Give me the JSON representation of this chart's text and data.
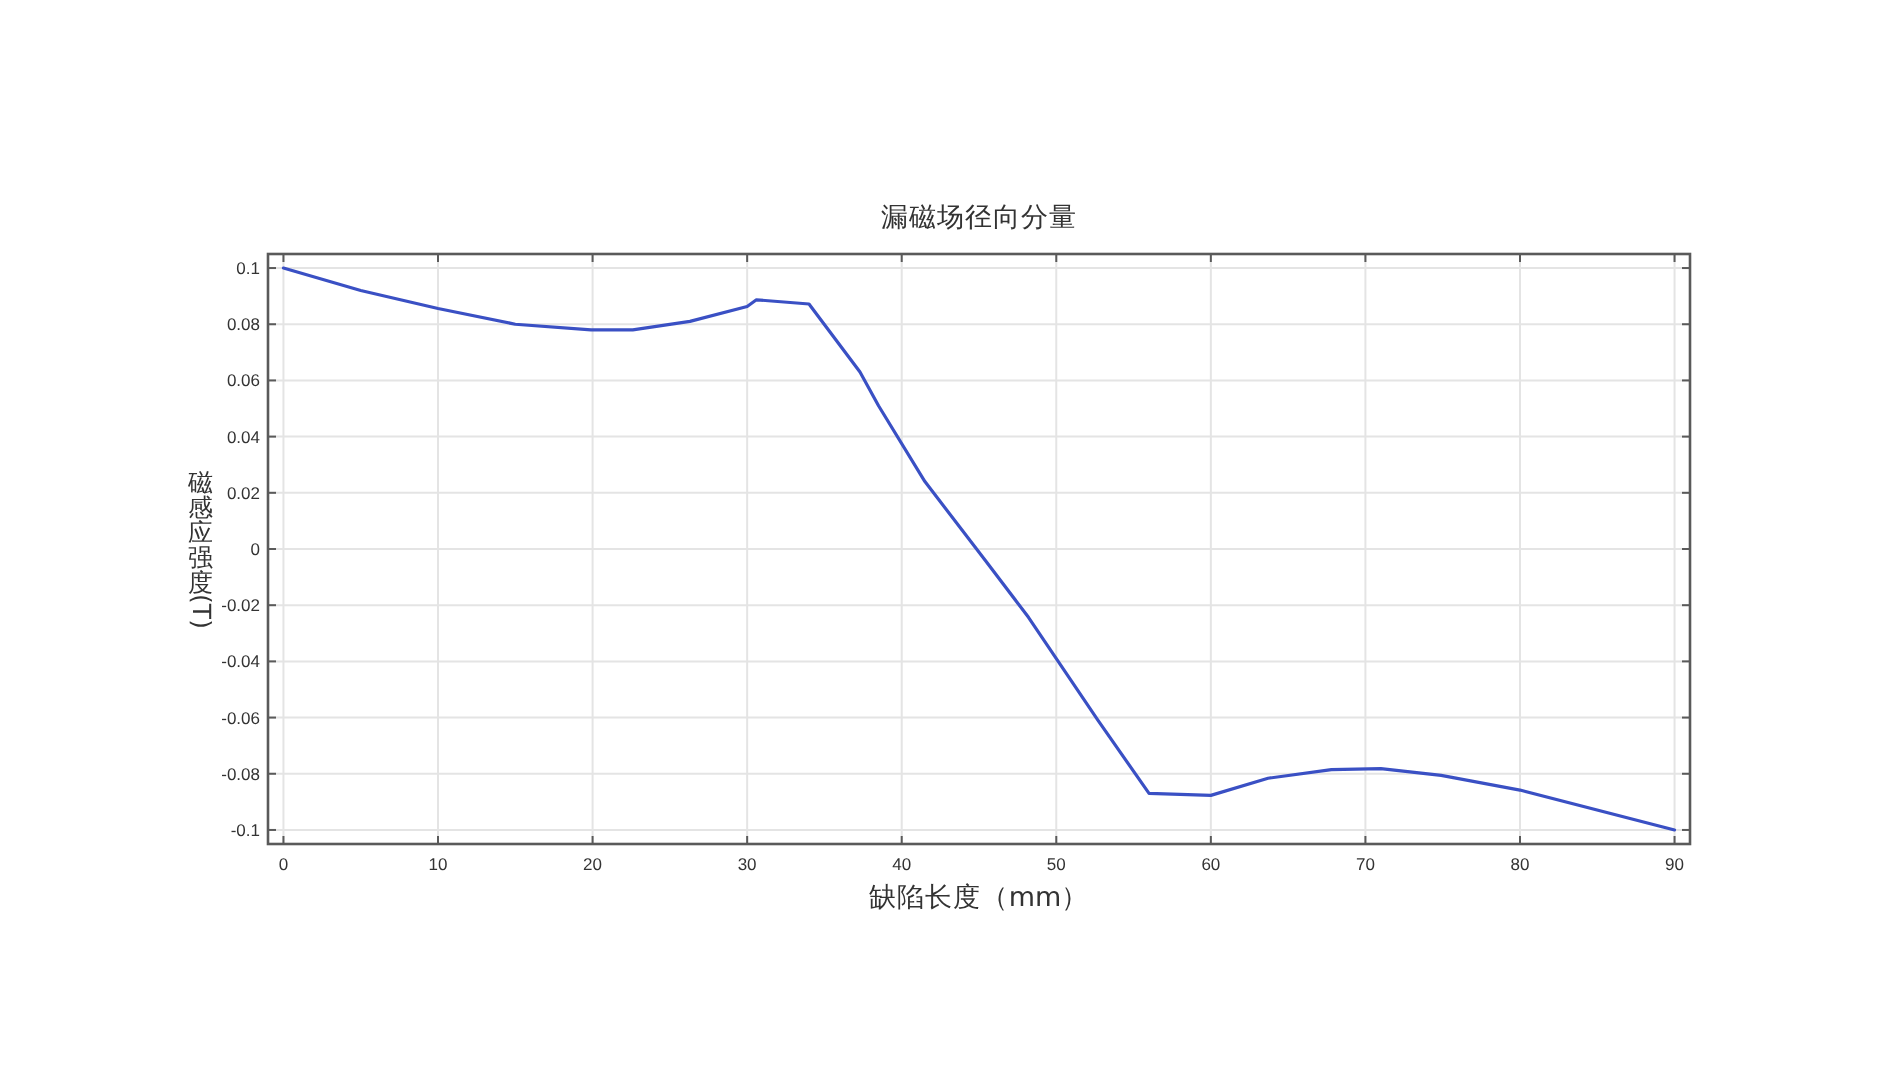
{
  "chart_data": {
    "type": "line",
    "title": "漏磁场径向分量",
    "xlabel": "缺陷长度（mm）",
    "ylabel": "磁感应强度(T)",
    "x": [
      0,
      5,
      10,
      15,
      19.9,
      22.6,
      26.3,
      30,
      30.6,
      34,
      37.3,
      38.5,
      41.5,
      45.4,
      48.2,
      52.7,
      56,
      60,
      63.7,
      67.8,
      71,
      74.9,
      80,
      90
    ],
    "series": [
      {
        "color": "#3a50c4",
        "values": [
          0.1,
          0.092,
          0.0856,
          0.08,
          0.078,
          0.078,
          0.081,
          0.0863,
          0.0887,
          0.0872,
          0.063,
          0.051,
          0.024,
          -0.004,
          -0.0243,
          -0.061,
          -0.087,
          -0.0877,
          -0.0816,
          -0.0785,
          -0.0782,
          -0.0806,
          -0.0858,
          -0.1
        ]
      }
    ],
    "xlim": [
      -1,
      91
    ],
    "ylim": [
      -0.105,
      0.105
    ],
    "xticks": [
      0,
      10,
      20,
      30,
      40,
      50,
      60,
      70,
      80,
      90
    ],
    "yticks": [
      -0.1,
      -0.08,
      -0.06,
      -0.04,
      -0.02,
      0,
      0.02,
      0.04,
      0.06,
      0.08,
      0.1
    ],
    "grid": true
  }
}
